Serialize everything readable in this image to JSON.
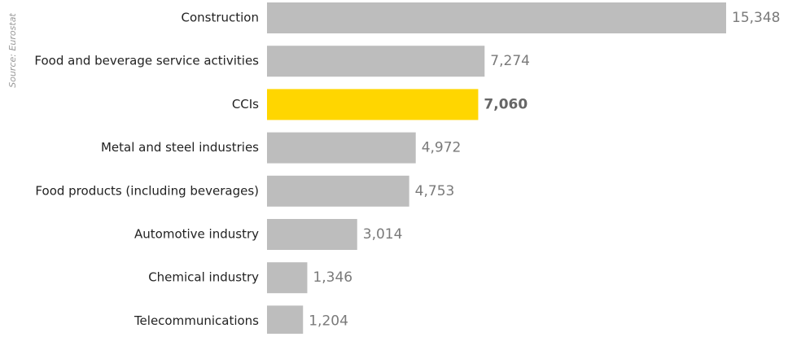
{
  "chart_data": {
    "type": "bar",
    "orientation": "horizontal",
    "source": "Source: Eurostat",
    "categories": [
      "Construction",
      "Food and beverage service activities",
      "CCIs",
      "Metal and steel industries",
      "Food products (including beverages)",
      "Automotive industry",
      "Chemical industry",
      "Telecommunications"
    ],
    "values": [
      15348,
      7274,
      7060,
      4972,
      4753,
      3014,
      1346,
      1204
    ],
    "value_labels": [
      "15,348",
      "7,274",
      "7,060",
      "4,972",
      "4,753",
      "3,014",
      "1,346",
      "1,204"
    ],
    "colors": [
      "#bdbdbd",
      "#bdbdbd",
      "#ffd600",
      "#bdbdbd",
      "#bdbdbd",
      "#bdbdbd",
      "#bdbdbd",
      "#bdbdbd"
    ]
  }
}
